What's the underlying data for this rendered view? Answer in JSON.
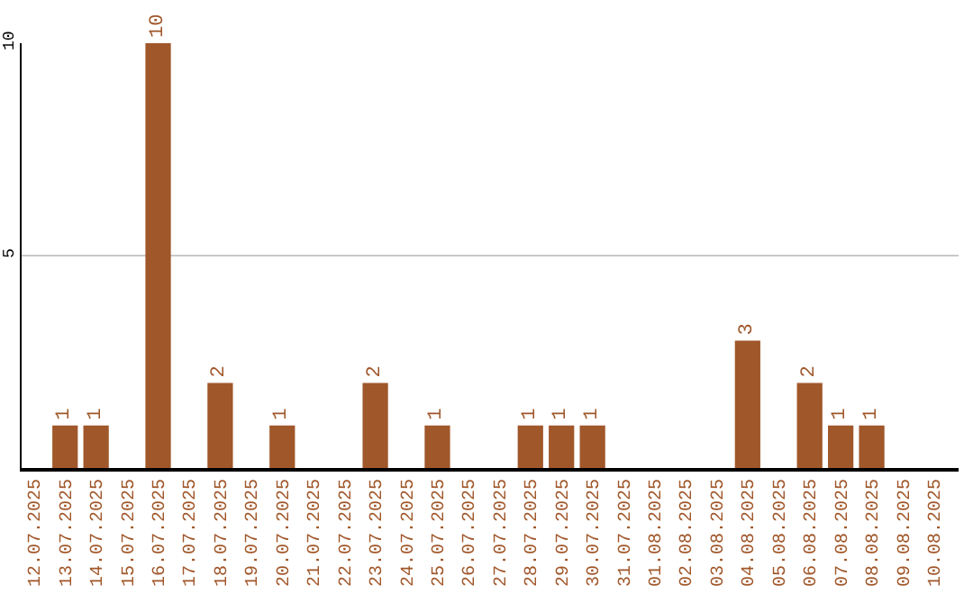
{
  "chart_data": {
    "type": "bar",
    "categories": [
      "12.07.2025",
      "13.07.2025",
      "14.07.2025",
      "15.07.2025",
      "16.07.2025",
      "17.07.2025",
      "18.07.2025",
      "19.07.2025",
      "20.07.2025",
      "21.07.2025",
      "22.07.2025",
      "23.07.2025",
      "24.07.2025",
      "25.07.2025",
      "26.07.2025",
      "27.07.2025",
      "28.07.2025",
      "29.07.2025",
      "30.07.2025",
      "31.07.2025",
      "01.08.2025",
      "02.08.2025",
      "03.08.2025",
      "04.08.2025",
      "05.08.2025",
      "06.08.2025",
      "07.08.2025",
      "08.08.2025",
      "09.08.2025",
      "10.08.2025"
    ],
    "values": [
      0,
      1,
      1,
      0,
      10,
      0,
      2,
      0,
      1,
      0,
      0,
      2,
      0,
      1,
      0,
      0,
      1,
      1,
      1,
      0,
      0,
      0,
      0,
      3,
      0,
      2,
      1,
      1,
      0,
      0
    ],
    "value_labels": [
      null,
      "1",
      "1",
      null,
      "10",
      null,
      "2",
      null,
      "1",
      null,
      null,
      "2",
      null,
      "1",
      null,
      null,
      "1",
      "1",
      "1",
      null,
      null,
      null,
      null,
      "3",
      null,
      "2",
      "1",
      "1",
      null,
      null
    ],
    "color": "#a0572a",
    "ylim": [
      0,
      10
    ],
    "yticks": [
      5,
      10
    ],
    "grid": "y",
    "legend": false
  }
}
